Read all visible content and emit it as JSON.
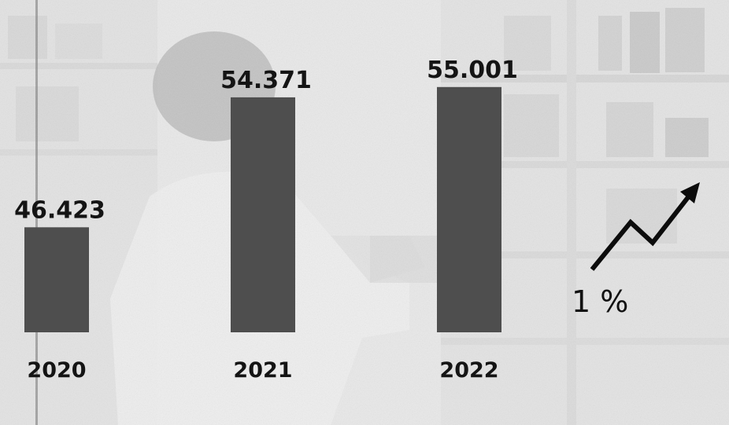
{
  "chart_data": {
    "type": "bar",
    "categories": [
      "2020",
      "2021",
      "2022"
    ],
    "values": [
      46423,
      54371,
      55001
    ],
    "value_labels": [
      "46.423",
      "54.371",
      "55.001"
    ],
    "title": "",
    "xlabel": "",
    "ylabel": "",
    "ylim": [
      40000,
      56000
    ],
    "grid": false,
    "legend": "none",
    "bar_color": "#4e4e4e",
    "background": "faded photo of a pharmacist reaching for medicine on pharmacy shelves",
    "annotation": {
      "text": "1 %",
      "icon": "trend-up-arrow-icon"
    }
  }
}
